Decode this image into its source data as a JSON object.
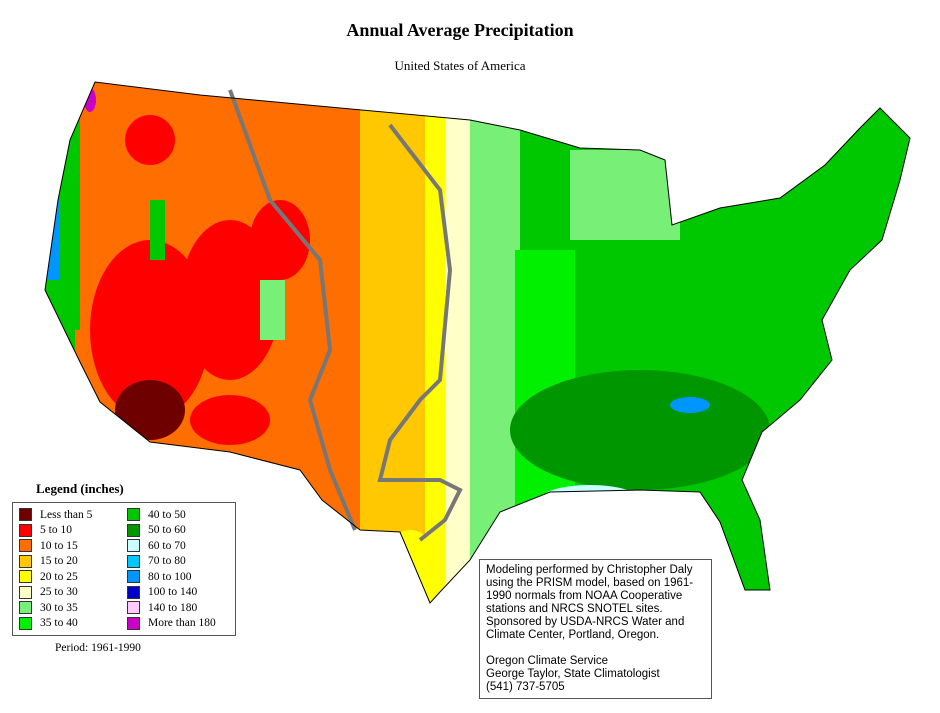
{
  "title": "Annual Average Precipitation",
  "subtitle": "United States of America",
  "legend": {
    "title": "Legend (inches)",
    "items": [
      {
        "label": "Less than 5",
        "color": "#6e0000"
      },
      {
        "label": "5 to 10",
        "color": "#ff0000"
      },
      {
        "label": "10 to 15",
        "color": "#ff6e00"
      },
      {
        "label": "15 to 20",
        "color": "#ffc800"
      },
      {
        "label": "20 to 25",
        "color": "#ffff00"
      },
      {
        "label": "25 to 30",
        "color": "#ffffc8"
      },
      {
        "label": "30 to 35",
        "color": "#78f078"
      },
      {
        "label": "35 to 40",
        "color": "#00f000"
      },
      {
        "label": "40 to 50",
        "color": "#00c800"
      },
      {
        "label": "50 to 60",
        "color": "#009600"
      },
      {
        "label": "60 to 70",
        "color": "#c8ffff"
      },
      {
        "label": "70 to 80",
        "color": "#00c8ff"
      },
      {
        "label": "80 to 100",
        "color": "#0096ff"
      },
      {
        "label": "100 to 140",
        "color": "#0000c8"
      },
      {
        "label": "140 to 180",
        "color": "#ffc8ff"
      },
      {
        "label": "More than 180",
        "color": "#c800c8"
      }
    ]
  },
  "period": "Period: 1961-1990",
  "credits": {
    "modeling": "Modeling performed by Christopher Daly using the PRISM model, based on 1961-1990 normals from NOAA Cooperative stations and NRCS SNOTEL sites.  Sponsored by USDA-NRCS Water and Climate Center, Portland, Oregon.",
    "org": "Oregon Climate Service",
    "person": "George Taylor, State Climatologist",
    "phone": "(541) 737-5705"
  }
}
